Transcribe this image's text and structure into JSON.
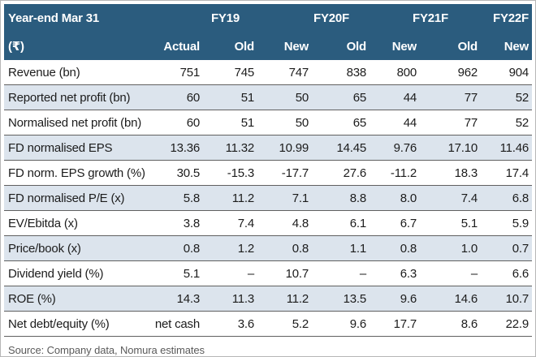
{
  "colors": {
    "header_bg": "#2b5c7e",
    "header_text": "#ffffff",
    "stripe_bg": "#dce4ed",
    "row_line": "#606060",
    "body_text": "#1c1c1c",
    "source_text": "#5a5a5a",
    "frame_border": "#b6b6b6"
  },
  "table": {
    "title": "Year-end Mar 31",
    "unit": "(₹)",
    "year_headers": [
      "FY19",
      "FY20F",
      "FY21F",
      "FY22F"
    ],
    "sub_headers": [
      "Actual",
      "Old",
      "New",
      "Old",
      "New",
      "Old",
      "New"
    ],
    "rows": [
      {
        "label": "Revenue (bn)",
        "values": [
          "751",
          "745",
          "747",
          "838",
          "800",
          "962",
          "904"
        ]
      },
      {
        "label": "Reported net profit (bn)",
        "values": [
          "60",
          "51",
          "50",
          "65",
          "44",
          "77",
          "52"
        ]
      },
      {
        "label": "Normalised net profit (bn)",
        "values": [
          "60",
          "51",
          "50",
          "65",
          "44",
          "77",
          "52"
        ]
      },
      {
        "label": "FD normalised EPS",
        "values": [
          "13.36",
          "11.32",
          "10.99",
          "14.45",
          "9.76",
          "17.10",
          "11.46"
        ]
      },
      {
        "label": "FD norm. EPS growth (%)",
        "values": [
          "30.5",
          "-15.3",
          "-17.7",
          "27.6",
          "-11.2",
          "18.3",
          "17.4"
        ]
      },
      {
        "label": "FD normalised P/E (x)",
        "values": [
          "5.8",
          "11.2",
          "7.1",
          "8.8",
          "8.0",
          "7.4",
          "6.8"
        ]
      },
      {
        "label": "EV/Ebitda (x)",
        "values": [
          "3.8",
          "7.4",
          "4.8",
          "6.1",
          "6.7",
          "5.1",
          "5.9"
        ]
      },
      {
        "label": "Price/book (x)",
        "values": [
          "0.8",
          "1.2",
          "0.8",
          "1.1",
          "0.8",
          "1.0",
          "0.7"
        ]
      },
      {
        "label": "Dividend yield (%)",
        "values": [
          "5.1",
          "–",
          "10.7",
          "–",
          "6.3",
          "–",
          "6.6"
        ]
      },
      {
        "label": "ROE (%)",
        "values": [
          "14.3",
          "11.3",
          "11.2",
          "13.5",
          "9.6",
          "14.6",
          "10.7"
        ]
      },
      {
        "label": "Net debt/equity (%)",
        "values": [
          "net cash",
          "3.6",
          "5.2",
          "9.6",
          "17.7",
          "8.6",
          "22.9"
        ]
      }
    ],
    "source": "Source: Company data, Nomura estimates"
  }
}
